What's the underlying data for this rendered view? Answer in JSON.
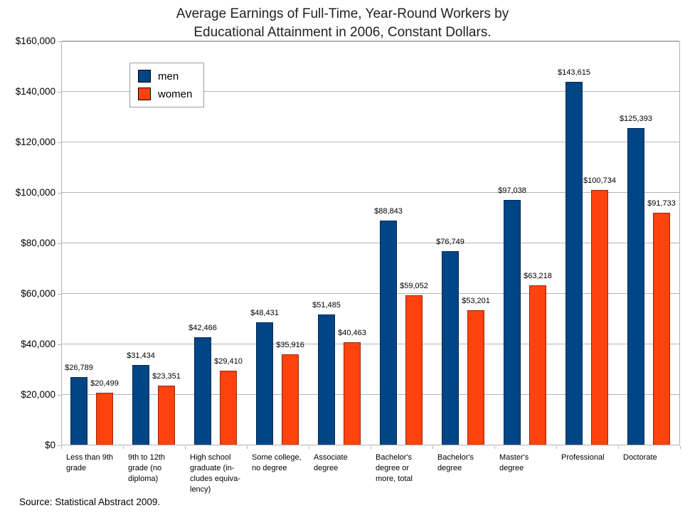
{
  "title_lines": [
    "Average Earnings of Full-Time, Year-Round Workers by",
    "Educational Attainment in 2006, Constant Dollars."
  ],
  "source_note": "Source: Statistical Abstract 2009.",
  "chart_data": {
    "type": "bar",
    "title": "Average Earnings of Full-Time, Year-Round Workers by Educational Attainment in 2006, Constant Dollars.",
    "categories": [
      "Less than 9th grade",
      "9th to 12th grade (no diploma)",
      "High school graduate (includes equivalency)",
      "Some college, no degree",
      "Associate degree",
      "Bachelor's degree or more, total",
      "Bachelor's degree",
      "Master's degree",
      "Professional",
      "Doctorate"
    ],
    "category_label_lines": [
      [
        "Less than 9th",
        "grade"
      ],
      [
        "9th to 12th",
        "grade (no",
        "diploma)"
      ],
      [
        "High school",
        "graduate (in-",
        "cludes equiva-",
        "lency)"
      ],
      [
        "Some college,",
        "no degree"
      ],
      [
        "Associate",
        "degree"
      ],
      [
        "Bachelor's",
        "degree or",
        "more, total"
      ],
      [
        "Bachelor's",
        "degree"
      ],
      [
        "Master's",
        "degree"
      ],
      [
        "Professional"
      ],
      [
        "Doctorate"
      ]
    ],
    "series": [
      {
        "name": "men",
        "color": "#004586",
        "values": [
          26789,
          31434,
          42466,
          48431,
          51485,
          88843,
          76749,
          97038,
          143615,
          125393
        ]
      },
      {
        "name": "women",
        "color": "#FF420E",
        "values": [
          20499,
          23351,
          29410,
          35916,
          40463,
          59052,
          53201,
          63218,
          100734,
          91733
        ]
      }
    ],
    "ylim": [
      0,
      160000
    ],
    "y_tick_step": 20000,
    "y_tick_labels": [
      "$0",
      "$20,000",
      "$40,000",
      "$60,000",
      "$80,000",
      "$100,000",
      "$120,000",
      "$140,000",
      "$160,000"
    ],
    "grid": true,
    "legend_position": "top-left",
    "value_labels": true,
    "value_label_prefix": "$"
  }
}
